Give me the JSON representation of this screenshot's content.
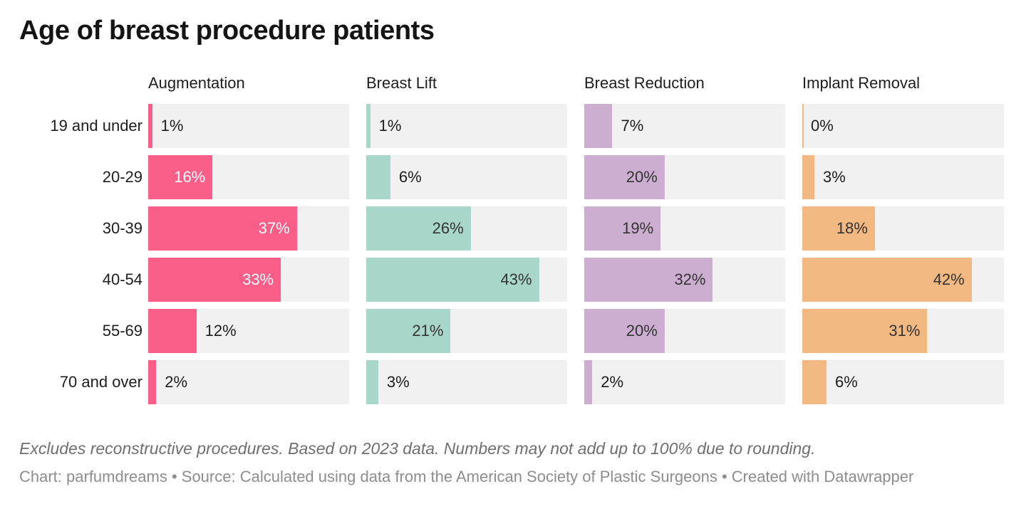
{
  "title": "Age of breast procedure patients",
  "notes": "Excludes reconstructive procedures. Based on 2023 data. Numbers may not add up to 100% due to rounding.",
  "byline": "Chart: parfumdreams • Source: Calculated using data from the American Society of Plastic Surgeons • Created with Datawrapper",
  "chart_data": {
    "type": "bar",
    "orientation": "horizontal",
    "title": "Age of breast procedure patients",
    "categories": [
      "19 and under",
      "20-29",
      "30-39",
      "40-54",
      "55-69",
      "70 and over"
    ],
    "series": [
      {
        "name": "Augmentation",
        "color": "#f85e87",
        "label_inside_color": "#ffffff",
        "values": [
          1,
          16,
          37,
          33,
          12,
          2
        ]
      },
      {
        "name": "Breast Lift",
        "color": "#a9d6ca",
        "label_inside_color": "#333333",
        "values": [
          1,
          6,
          26,
          43,
          21,
          3
        ]
      },
      {
        "name": "Breast Reduction",
        "color": "#cbaed0",
        "label_inside_color": "#333333",
        "values": [
          7,
          20,
          19,
          32,
          20,
          2
        ]
      },
      {
        "name": "Implant Removal",
        "color": "#f1b981",
        "label_inside_color": "#333333",
        "values": [
          0,
          3,
          18,
          42,
          31,
          6
        ]
      }
    ],
    "value_suffix": "%",
    "xmax": 50,
    "grid": false,
    "legend_position": "column-headers",
    "track_color": "#f1f1f1",
    "outside_label_color": "#1d1d1d",
    "inside_label_threshold": 15
  }
}
